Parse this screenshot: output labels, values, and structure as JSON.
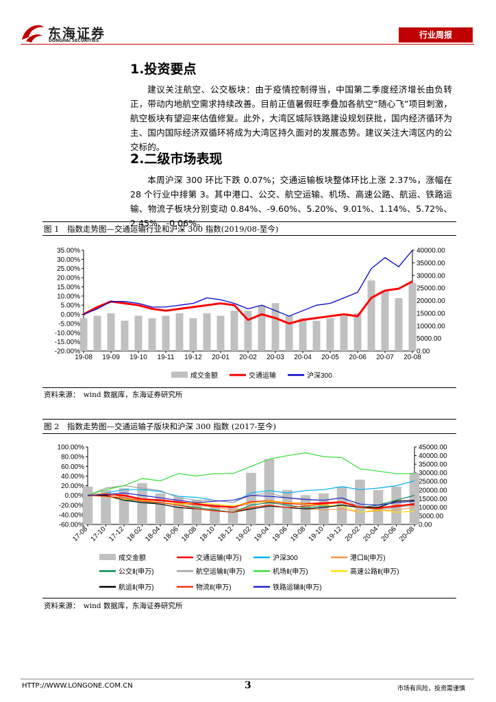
{
  "header": {
    "logo": "东海证券",
    "logo_en": "DONGHAI SECURITIES",
    "tag": "行业周报"
  },
  "sections": [
    {
      "heading": "1.投资要点",
      "paragraph": "建议关注航空、公交板块：由于疫情控制得当，中国第二季度经济增长由负转正，带动内地航空需求持续改善。目前正值暑假旺季叠加各航空“随心飞”项目刺激，航空板块有望迎来估值修复。此外，大湾区城际铁路建设规划获批，国内经济循环为主、国内国际经济双循环将成为大湾区持久面对的发展态势。建议关注大湾区内的公交标的。"
    },
    {
      "heading": "2.二级市场表现",
      "paragraph": "本周沪深 300 环比下跌 0.07%；交通运输板块整体环比上涨 2.37%，涨幅在 28 个行业中排第 3。其中港口、公交、航空运输、机场、高速公路、航运、铁路运输、物流子板块分别变动 0.84%、-9.60%、5.20%、9.01%、1.14%、5.72%、2.45%、-0.06%。"
    }
  ],
  "chart_data": [
    {
      "type": "line",
      "title": "图 1　指数走势图—交通运输行业和沪深 300 指数(2019/08-至今)",
      "source": "资料来源：　wind 数据库，东海证券研究所",
      "categories": [
        "19-08",
        null,
        "19-09",
        null,
        "19-10",
        null,
        "19-11",
        null,
        "19-12",
        null,
        "20-01",
        null,
        "20-02",
        null,
        "20-03",
        null,
        "20-04",
        null,
        "20-05",
        null,
        "20-06",
        null,
        "20-07",
        null,
        "20-08"
      ],
      "ylim": [
        -20,
        35
      ],
      "yticks": [
        {
          "value": -20,
          "label": "-20.00%"
        },
        {
          "value": -15,
          "label": "-15.00%"
        },
        {
          "value": -10,
          "label": "-10.00%"
        },
        {
          "value": -5,
          "label": "-5.00%"
        },
        {
          "value": 0,
          "label": "0.00%"
        },
        {
          "value": 5,
          "label": "5.00%"
        },
        {
          "value": 10,
          "label": "10.00%"
        },
        {
          "value": 15,
          "label": "15.00%"
        },
        {
          "value": 20,
          "label": "20.00%"
        },
        {
          "value": 25,
          "label": "25.00%"
        },
        {
          "value": 30,
          "label": "30.00%"
        },
        {
          "value": 35,
          "label": "35.00%"
        }
      ],
      "y2lim": [
        0,
        40000
      ],
      "y2ticks": [
        {
          "value": 0,
          "label": "0.00"
        },
        {
          "value": 5000,
          "label": "5000.00"
        },
        {
          "value": 10000,
          "label": "10000.00"
        },
        {
          "value": 15000,
          "label": "15000.00"
        },
        {
          "value": 20000,
          "label": "20000.00"
        },
        {
          "value": 25000,
          "label": "25000.00"
        },
        {
          "value": 30000,
          "label": "30000.00"
        },
        {
          "value": 35000,
          "label": "35000.00"
        },
        {
          "value": 40000,
          "label": "40000.00"
        }
      ],
      "series": [
        {
          "name": "成交金额",
          "kind": "bar",
          "axis": "y2",
          "color": "#c0c0c0",
          "values": [
            13000,
            14000,
            15000,
            12000,
            14000,
            13000,
            14000,
            15000,
            13000,
            15000,
            14000,
            16000,
            16000,
            18000,
            19000,
            14000,
            13000,
            12000,
            13000,
            14000,
            15000,
            28000,
            24000,
            21000,
            27000
          ]
        },
        {
          "name": "交通运输",
          "color": "#ff0000",
          "width": 3,
          "values": [
            0,
            4,
            7,
            6,
            5,
            3,
            2,
            3,
            4,
            5,
            6,
            5,
            -3,
            0,
            -2,
            -5,
            -3,
            -2,
            -1,
            0,
            -1,
            9,
            13,
            14,
            18
          ]
        },
        {
          "name": "沪深300",
          "color": "#0000cc",
          "width": 1.3,
          "values": [
            0,
            3,
            7,
            7,
            6,
            4,
            4,
            5,
            6,
            9,
            8,
            6,
            3,
            5,
            2,
            -1,
            2,
            5,
            6,
            9,
            12,
            25,
            31,
            26,
            35
          ]
        }
      ]
    },
    {
      "type": "line",
      "title": "图 2　指数走势图—交通运输子版块和沪深 300 指数 (2017-至今)",
      "source": "资料来源：　wind 数据库，东海证券研究所",
      "categories": [
        "17-08",
        "17-10",
        "17-12",
        "18-02",
        "18-04",
        "18-06",
        "18-08",
        "18-10",
        "18-12",
        "19-02",
        "19-04",
        "19-06",
        "19-08",
        "19-10",
        "19-12",
        "20-02",
        "20-04",
        "20-06",
        "20-08"
      ],
      "ylim": [
        -60,
        100
      ],
      "yticks": [
        {
          "value": -60,
          "label": "-60.00%"
        },
        {
          "value": -40,
          "label": "-40.00%"
        },
        {
          "value": -20,
          "label": "-20.00%"
        },
        {
          "value": 0,
          "label": "0.00%"
        },
        {
          "value": 20,
          "label": "20.00%"
        },
        {
          "value": 40,
          "label": "40.00%"
        },
        {
          "value": 60,
          "label": "60.00%"
        },
        {
          "value": 80,
          "label": "80.00%"
        },
        {
          "value": 100,
          "label": "100.00%"
        }
      ],
      "y2lim": [
        0,
        45000
      ],
      "y2ticks": [
        {
          "value": 0,
          "label": "0.00"
        },
        {
          "value": 5000,
          "label": "5000.00"
        },
        {
          "value": 10000,
          "label": "10000.00"
        },
        {
          "value": 15000,
          "label": "15000.00"
        },
        {
          "value": 20000,
          "label": "20000.00"
        },
        {
          "value": 25000,
          "label": "25000.00"
        },
        {
          "value": 30000,
          "label": "30000.00"
        },
        {
          "value": 35000,
          "label": "35000.00"
        },
        {
          "value": 40000,
          "label": "40000.00"
        },
        {
          "value": 45000,
          "label": "45000.00"
        }
      ],
      "series": [
        {
          "name": "成交金额",
          "kind": "bar",
          "axis": "y2",
          "color": "#c0c0c0",
          "values": [
            22000,
            20000,
            21000,
            24000,
            18000,
            16000,
            14000,
            12000,
            11000,
            30000,
            38000,
            20000,
            17000,
            18000,
            22000,
            26000,
            20000,
            22000,
            30000
          ]
        },
        {
          "name": "交通运输(申万)",
          "color": "#ff0000",
          "width": 2.5,
          "values": [
            0,
            2,
            0,
            -8,
            -10,
            -14,
            -18,
            -22,
            -24,
            -14,
            -12,
            -16,
            -18,
            -16,
            -14,
            -24,
            -26,
            -22,
            -18
          ]
        },
        {
          "name": "沪深300",
          "color": "#00b0f0",
          "width": 1.2,
          "values": [
            0,
            5,
            12,
            12,
            8,
            -2,
            -4,
            -10,
            -15,
            5,
            10,
            5,
            10,
            12,
            18,
            12,
            15,
            20,
            30
          ]
        },
        {
          "name": "港口Ⅱ(申万)",
          "color": "#f79646",
          "width": 1.2,
          "values": [
            0,
            5,
            -5,
            -10,
            -15,
            -18,
            -20,
            -25,
            -30,
            -25,
            -20,
            -25,
            -28,
            -30,
            -28,
            -35,
            -32,
            -30,
            -25
          ]
        },
        {
          "name": "公交Ⅱ(申万)",
          "color": "#00864b",
          "width": 1.2,
          "values": [
            0,
            -2,
            -8,
            -15,
            -15,
            -20,
            -25,
            -30,
            -35,
            -20,
            -15,
            -20,
            -25,
            -22,
            -20,
            -25,
            -20,
            -10,
            0
          ]
        },
        {
          "name": "航空运输Ⅱ(申万)",
          "color": "#a0a0a0",
          "width": 1.2,
          "values": [
            0,
            15,
            20,
            15,
            10,
            -5,
            -10,
            -10,
            -15,
            0,
            5,
            -5,
            -10,
            -10,
            -5,
            -25,
            -30,
            -25,
            -20
          ]
        },
        {
          "name": "机场Ⅱ(申万)",
          "color": "#33dd33",
          "width": 1.2,
          "values": [
            0,
            12,
            20,
            35,
            30,
            45,
            40,
            45,
            45,
            60,
            75,
            82,
            88,
            80,
            78,
            55,
            50,
            45,
            45
          ]
        },
        {
          "name": "高速公路Ⅱ(申万)",
          "color": "#ffe000",
          "width": 1.2,
          "values": [
            0,
            -2,
            -8,
            -10,
            -15,
            -18,
            -15,
            -18,
            -22,
            -15,
            -12,
            -15,
            -18,
            -20,
            -22,
            -35,
            -30,
            -35,
            -33
          ]
        },
        {
          "name": "航运Ⅱ(申万)",
          "color": "#000000",
          "width": 1.2,
          "values": [
            0,
            0,
            -10,
            -15,
            -18,
            -25,
            -28,
            -32,
            -35,
            -28,
            -22,
            -25,
            -28,
            -25,
            -20,
            -25,
            -25,
            -12,
            -10
          ]
        },
        {
          "name": "物流Ⅱ(申万)",
          "color": "#ff3300",
          "width": 1.2,
          "values": [
            0,
            -2,
            -5,
            -12,
            -15,
            -20,
            -28,
            -32,
            -35,
            -25,
            -20,
            -25,
            -22,
            -18,
            -15,
            -25,
            -28,
            -20,
            -20
          ]
        },
        {
          "name": "铁路运输Ⅱ(申万)",
          "color": "#2222cc",
          "width": 1.2,
          "values": [
            0,
            2,
            5,
            0,
            -5,
            -10,
            -15,
            -12,
            -10,
            0,
            -2,
            -5,
            -8,
            -10,
            -5,
            -18,
            -20,
            -15,
            -12
          ]
        }
      ]
    }
  ],
  "footer": {
    "url": "HTTP://WWW.LONGONE.COM.CN",
    "page": 3,
    "note": "市场有风险，投资需谨慎"
  }
}
